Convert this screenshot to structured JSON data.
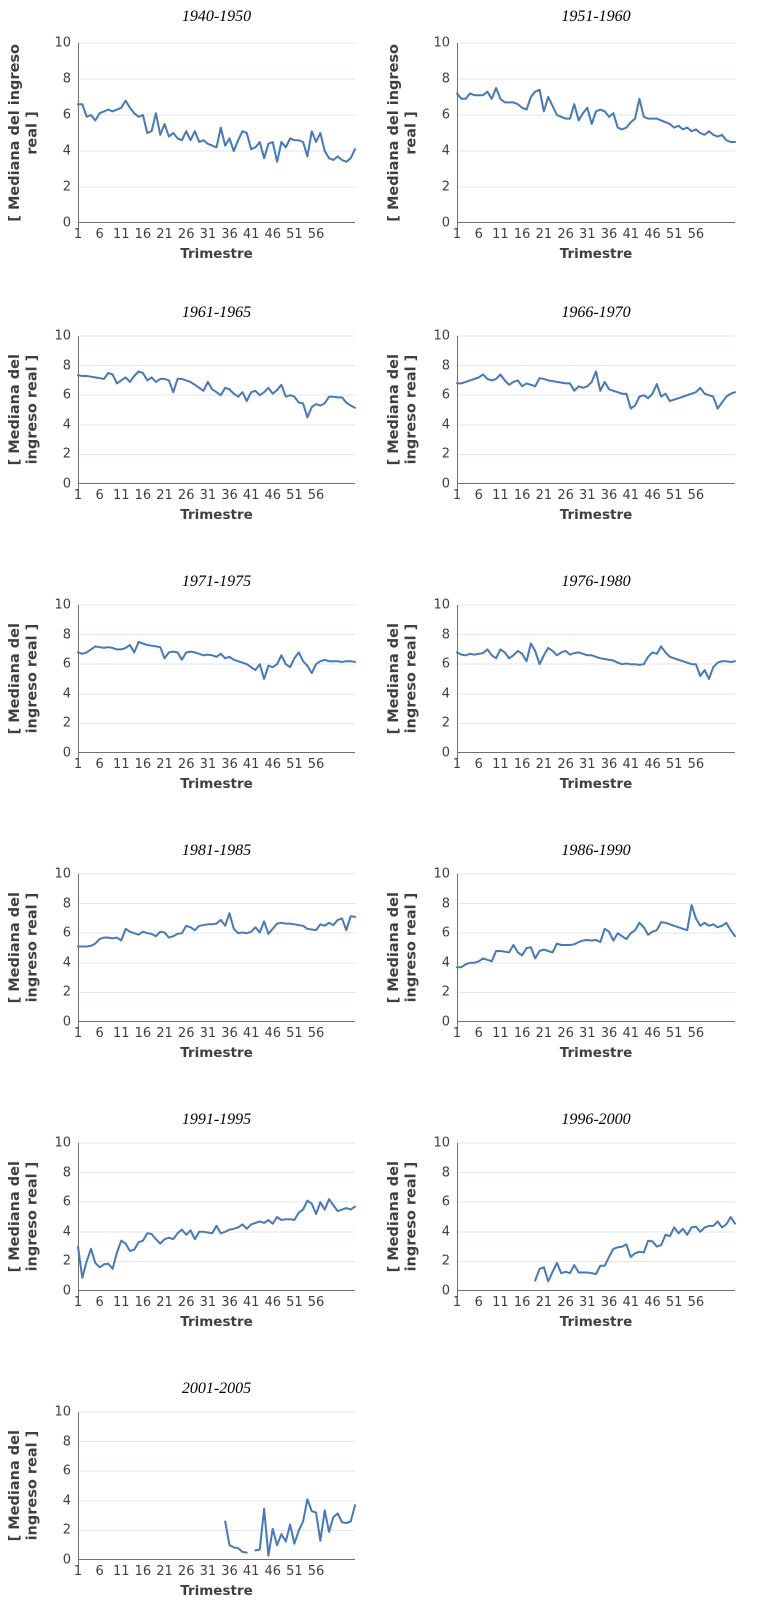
{
  "page": {
    "background": "#ffffff"
  },
  "style": {
    "line_color": "#4a7ab5",
    "grid_color": "#dde7f3",
    "axis_color": "#707070",
    "tick_text_color": "#3f3f3f",
    "title_color": "#000000"
  },
  "chart_data": [
    {
      "type": "line",
      "title": "1940-1950",
      "xlabel": "Trimestre",
      "ylabel": "[ Mediana del ingreso real ]",
      "ylabel_lines": [
        "[ Mediana del ingreso",
        "real ]"
      ],
      "x_ticks": [
        1,
        6,
        11,
        16,
        21,
        26,
        31,
        36,
        41,
        46,
        51,
        56
      ],
      "y_ticks": [
        0,
        2,
        4,
        6,
        8,
        10
      ],
      "xlim": [
        1,
        65
      ],
      "ylim": [
        0,
        10
      ],
      "grid": "horizontal",
      "legend": "none",
      "x_start": 1,
      "values": [
        6.6,
        6.6,
        5.9,
        6.0,
        5.7,
        6.1,
        6.2,
        6.3,
        6.2,
        6.3,
        6.4,
        6.8,
        6.4,
        6.1,
        5.9,
        6.0,
        5.0,
        5.1,
        6.1,
        4.9,
        5.5,
        4.8,
        5.0,
        4.7,
        4.6,
        5.1,
        4.6,
        5.1,
        4.5,
        4.6,
        4.4,
        4.3,
        4.2,
        5.3,
        4.3,
        4.7,
        4.0,
        4.6,
        5.1,
        5.0,
        4.1,
        4.2,
        4.5,
        3.6,
        4.4,
        4.5,
        3.4,
        4.5,
        4.2,
        4.7,
        4.6,
        4.6,
        4.5,
        3.7,
        5.1,
        4.5,
        5.0,
        4.0,
        3.6,
        3.5,
        3.7,
        3.5,
        3.4,
        3.6,
        4.1
      ]
    },
    {
      "type": "line",
      "title": "1951-1960",
      "xlabel": "Trimestre",
      "ylabel": "[ Mediana del ingreso real ]",
      "ylabel_lines": [
        "[ Mediana del ingreso",
        "real ]"
      ],
      "x_ticks": [
        1,
        6,
        11,
        16,
        21,
        26,
        31,
        36,
        41,
        46,
        51,
        56
      ],
      "y_ticks": [
        0,
        2,
        4,
        6,
        8,
        10
      ],
      "xlim": [
        1,
        65
      ],
      "ylim": [
        0,
        10
      ],
      "grid": "horizontal",
      "legend": "none",
      "x_start": 1,
      "values": [
        7.2,
        6.9,
        6.9,
        7.2,
        7.1,
        7.1,
        7.1,
        7.3,
        6.9,
        7.5,
        6.9,
        6.7,
        6.7,
        6.7,
        6.6,
        6.4,
        6.3,
        7.0,
        7.3,
        7.4,
        6.2,
        7.0,
        6.5,
        6.0,
        5.9,
        5.8,
        5.8,
        6.6,
        5.7,
        6.1,
        6.4,
        5.5,
        6.2,
        6.3,
        6.2,
        5.9,
        6.1,
        5.3,
        5.2,
        5.3,
        5.6,
        5.8,
        6.9,
        5.9,
        5.8,
        5.8,
        5.8,
        5.7,
        5.6,
        5.5,
        5.3,
        5.4,
        5.2,
        5.3,
        5.1,
        5.2,
        5.0,
        4.9,
        5.1,
        4.9,
        4.8,
        4.9,
        4.6,
        4.5,
        4.5
      ]
    },
    {
      "type": "line",
      "title": "1961-1965",
      "xlabel": "Trimestre",
      "ylabel": "[ Mediana del ingreso real ]",
      "ylabel_lines": [
        "[ Mediana del",
        "ingreso real ]"
      ],
      "x_ticks": [
        1,
        6,
        11,
        16,
        21,
        26,
        31,
        36,
        41,
        46,
        51,
        56
      ],
      "y_ticks": [
        0,
        2,
        4,
        6,
        8,
        10
      ],
      "xlim": [
        1,
        65
      ],
      "ylim": [
        0,
        10
      ],
      "grid": "horizontal",
      "legend": "none",
      "x_start": 1,
      "values": [
        7.35,
        7.3,
        7.3,
        7.25,
        7.2,
        7.15,
        7.1,
        7.5,
        7.4,
        6.8,
        7.0,
        7.2,
        6.9,
        7.3,
        7.6,
        7.5,
        7.0,
        7.2,
        6.9,
        7.1,
        7.1,
        7.0,
        6.2,
        7.1,
        7.1,
        7.0,
        6.9,
        6.7,
        6.5,
        6.3,
        6.9,
        6.4,
        6.2,
        6.0,
        6.5,
        6.4,
        6.1,
        5.9,
        6.2,
        5.6,
        6.2,
        6.3,
        6.0,
        6.2,
        6.5,
        6.1,
        6.35,
        6.7,
        5.9,
        6.0,
        5.9,
        5.5,
        5.45,
        4.5,
        5.2,
        5.4,
        5.3,
        5.45,
        5.9,
        5.9,
        5.85,
        5.85,
        5.5,
        5.3,
        5.15
      ]
    },
    {
      "type": "line",
      "title": "1966-1970",
      "xlabel": "Trimestre",
      "ylabel": "[ Mediana del ingreso real ]",
      "ylabel_lines": [
        "[ Mediana del",
        "ingreso real ]"
      ],
      "x_ticks": [
        1,
        6,
        11,
        16,
        21,
        26,
        31,
        36,
        41,
        46,
        51,
        56
      ],
      "y_ticks": [
        0,
        2,
        4,
        6,
        8,
        10
      ],
      "xlim": [
        1,
        65
      ],
      "ylim": [
        0,
        10
      ],
      "grid": "horizontal",
      "legend": "none",
      "x_start": 1,
      "values": [
        6.8,
        6.8,
        6.9,
        7.0,
        7.1,
        7.2,
        7.4,
        7.1,
        7.0,
        7.1,
        7.4,
        7.0,
        6.7,
        6.9,
        7.0,
        6.6,
        6.8,
        6.7,
        6.6,
        7.15,
        7.1,
        7.0,
        6.95,
        6.9,
        6.85,
        6.8,
        6.8,
        6.3,
        6.6,
        6.5,
        6.6,
        6.9,
        7.6,
        6.3,
        6.9,
        6.4,
        6.3,
        6.2,
        6.1,
        6.1,
        5.1,
        5.3,
        5.9,
        6.0,
        5.8,
        6.1,
        6.75,
        5.9,
        6.1,
        5.6,
        5.7,
        5.8,
        5.9,
        6.0,
        6.1,
        6.2,
        6.5,
        6.1,
        6.0,
        5.9,
        5.1,
        5.5,
        5.9,
        6.1,
        6.2
      ]
    },
    {
      "type": "line",
      "title": "1971-1975",
      "xlabel": "Trimestre",
      "ylabel": "[ Mediana del ingreso real ]",
      "ylabel_lines": [
        "[ Mediana del",
        "ingreso real ]"
      ],
      "x_ticks": [
        1,
        6,
        11,
        16,
        21,
        26,
        31,
        36,
        41,
        46,
        51,
        56
      ],
      "y_ticks": [
        0,
        2,
        4,
        6,
        8,
        10
      ],
      "xlim": [
        1,
        65
      ],
      "ylim": [
        0,
        10
      ],
      "grid": "horizontal",
      "legend": "none",
      "x_start": 1,
      "values": [
        6.8,
        6.7,
        6.8,
        7.0,
        7.2,
        7.15,
        7.1,
        7.15,
        7.1,
        7.0,
        7.0,
        7.1,
        7.3,
        6.8,
        7.5,
        7.4,
        7.3,
        7.25,
        7.2,
        7.15,
        6.4,
        6.8,
        6.85,
        6.8,
        6.3,
        6.8,
        6.85,
        6.8,
        6.7,
        6.6,
        6.65,
        6.6,
        6.5,
        6.7,
        6.4,
        6.5,
        6.3,
        6.2,
        6.1,
        6.0,
        5.8,
        5.6,
        6.0,
        5.0,
        5.9,
        5.8,
        6.0,
        6.6,
        6.0,
        5.8,
        6.4,
        6.8,
        6.2,
        5.9,
        5.4,
        6.0,
        6.2,
        6.3,
        6.2,
        6.2,
        6.2,
        6.15,
        6.2,
        6.2,
        6.15
      ]
    },
    {
      "type": "line",
      "title": "1976-1980",
      "xlabel": "Trimestre",
      "ylabel": "[ Mediana del ingreso real ]",
      "ylabel_lines": [
        "[ Mediana del",
        "ingreso real ]"
      ],
      "x_ticks": [
        1,
        6,
        11,
        16,
        21,
        26,
        31,
        36,
        41,
        46,
        51,
        56
      ],
      "y_ticks": [
        0,
        2,
        4,
        6,
        8,
        10
      ],
      "xlim": [
        1,
        65
      ],
      "ylim": [
        0,
        10
      ],
      "grid": "horizontal",
      "legend": "none",
      "x_start": 1,
      "values": [
        6.8,
        6.65,
        6.6,
        6.7,
        6.65,
        6.7,
        6.75,
        7.0,
        6.6,
        6.4,
        7.0,
        6.8,
        6.4,
        6.6,
        6.9,
        6.7,
        6.2,
        7.4,
        6.9,
        6.0,
        6.6,
        7.1,
        6.9,
        6.6,
        6.8,
        6.9,
        6.65,
        6.75,
        6.8,
        6.7,
        6.6,
        6.6,
        6.5,
        6.4,
        6.35,
        6.3,
        6.25,
        6.1,
        6.0,
        6.05,
        6.0,
        6.0,
        5.95,
        6.0,
        6.5,
        6.8,
        6.7,
        7.2,
        6.8,
        6.5,
        6.4,
        6.3,
        6.2,
        6.1,
        6.0,
        6.0,
        5.2,
        5.6,
        5.0,
        5.8,
        6.1,
        6.2,
        6.2,
        6.15,
        6.2
      ]
    },
    {
      "type": "line",
      "title": "1981-1985",
      "xlabel": "Trimestre",
      "ylabel": "[ Mediana del ingreso real ]",
      "ylabel_lines": [
        "[ Mediana del",
        "ingreso real ]"
      ],
      "x_ticks": [
        1,
        6,
        11,
        16,
        21,
        26,
        31,
        36,
        41,
        46,
        51,
        56
      ],
      "y_ticks": [
        0,
        2,
        4,
        6,
        8,
        10
      ],
      "xlim": [
        1,
        65
      ],
      "ylim": [
        0,
        10
      ],
      "grid": "horizontal",
      "legend": "none",
      "x_start": 1,
      "values": [
        5.1,
        5.1,
        5.1,
        5.15,
        5.3,
        5.6,
        5.7,
        5.7,
        5.65,
        5.7,
        5.5,
        6.3,
        6.1,
        6.0,
        5.9,
        6.1,
        6.0,
        5.95,
        5.8,
        6.1,
        6.05,
        5.7,
        5.8,
        5.95,
        6.0,
        6.5,
        6.4,
        6.2,
        6.5,
        6.55,
        6.6,
        6.6,
        6.65,
        6.9,
        6.5,
        7.35,
        6.3,
        6.0,
        6.05,
        6.0,
        6.1,
        6.4,
        6.05,
        6.8,
        5.95,
        6.3,
        6.65,
        6.7,
        6.65,
        6.65,
        6.6,
        6.55,
        6.5,
        6.3,
        6.25,
        6.2,
        6.6,
        6.5,
        6.7,
        6.55,
        6.9,
        7.0,
        6.2,
        7.15,
        7.1
      ]
    },
    {
      "type": "line",
      "title": "1986-1990",
      "xlabel": "Trimestre",
      "ylabel": "[ Mediana del ingreso real ]",
      "ylabel_lines": [
        "[ Mediana del",
        "ingreso real ]"
      ],
      "x_ticks": [
        1,
        6,
        11,
        16,
        21,
        26,
        31,
        36,
        41,
        46,
        51,
        56
      ],
      "y_ticks": [
        0,
        2,
        4,
        6,
        8,
        10
      ],
      "xlim": [
        1,
        65
      ],
      "ylim": [
        0,
        10
      ],
      "grid": "horizontal",
      "legend": "none",
      "x_start": 1,
      "values": [
        3.7,
        3.7,
        3.9,
        4.0,
        4.0,
        4.1,
        4.3,
        4.2,
        4.1,
        4.8,
        4.8,
        4.75,
        4.7,
        5.2,
        4.7,
        4.5,
        5.0,
        5.05,
        4.3,
        4.8,
        4.9,
        4.8,
        4.7,
        5.3,
        5.2,
        5.2,
        5.2,
        5.25,
        5.4,
        5.5,
        5.55,
        5.5,
        5.55,
        5.4,
        6.3,
        6.1,
        5.5,
        6.0,
        5.8,
        5.6,
        6.0,
        6.2,
        6.7,
        6.4,
        5.9,
        6.1,
        6.2,
        6.75,
        6.7,
        6.6,
        6.5,
        6.4,
        6.3,
        6.2,
        7.9,
        7.0,
        6.5,
        6.7,
        6.5,
        6.6,
        6.4,
        6.5,
        6.7,
        6.2,
        5.8
      ]
    },
    {
      "type": "line",
      "title": "1991-1995",
      "xlabel": "Trimestre",
      "ylabel": "[ Mediana del ingreso real ]",
      "ylabel_lines": [
        "[ Mediana del",
        "ingreso real ]"
      ],
      "x_ticks": [
        1,
        6,
        11,
        16,
        21,
        26,
        31,
        36,
        41,
        46,
        51,
        56
      ],
      "y_ticks": [
        0,
        2,
        4,
        6,
        8,
        10
      ],
      "xlim": [
        1,
        65
      ],
      "ylim": [
        0,
        10
      ],
      "grid": "horizontal",
      "legend": "none",
      "x_start": 1,
      "values": [
        3.0,
        0.9,
        2.0,
        2.85,
        1.9,
        1.6,
        1.8,
        1.85,
        1.5,
        2.6,
        3.4,
        3.2,
        2.7,
        2.8,
        3.3,
        3.4,
        3.9,
        3.85,
        3.5,
        3.2,
        3.5,
        3.6,
        3.5,
        3.9,
        4.15,
        3.8,
        4.1,
        3.5,
        4.0,
        4.0,
        3.95,
        3.9,
        4.4,
        3.9,
        4.0,
        4.15,
        4.2,
        4.3,
        4.5,
        4.2,
        4.5,
        4.6,
        4.7,
        4.6,
        4.8,
        4.55,
        5.0,
        4.8,
        4.85,
        4.85,
        4.8,
        5.3,
        5.5,
        6.1,
        5.9,
        5.2,
        6.0,
        5.5,
        6.2,
        5.8,
        5.4,
        5.5,
        5.6,
        5.5,
        5.7
      ]
    },
    {
      "type": "line",
      "title": "1996-2000",
      "xlabel": "Trimestre",
      "ylabel": "[ Mediana del ingreso real ]",
      "ylabel_lines": [
        "[ Mediana del",
        "ingreso real ]"
      ],
      "x_ticks": [
        1,
        6,
        11,
        16,
        21,
        26,
        31,
        36,
        41,
        46,
        51,
        56
      ],
      "y_ticks": [
        0,
        2,
        4,
        6,
        8,
        10
      ],
      "xlim": [
        1,
        65
      ],
      "ylim": [
        0,
        10
      ],
      "grid": "horizontal",
      "legend": "none",
      "x_start": 19,
      "values": [
        0.7,
        1.5,
        1.6,
        0.65,
        1.3,
        1.9,
        1.2,
        1.3,
        1.2,
        1.75,
        1.25,
        1.25,
        1.25,
        1.2,
        1.15,
        1.7,
        1.7,
        2.3,
        2.85,
        2.95,
        3.0,
        3.15,
        2.3,
        2.55,
        2.65,
        2.6,
        3.4,
        3.35,
        3.0,
        3.1,
        3.8,
        3.7,
        4.3,
        3.9,
        4.2,
        3.8,
        4.3,
        4.35,
        4.0,
        4.3,
        4.4,
        4.4,
        4.7,
        4.3,
        4.5,
        5.0,
        4.55
      ]
    },
    {
      "type": "line",
      "title": "2001-2005",
      "xlabel": "Trimestre",
      "ylabel": "[ Mediana del ingreso real ]",
      "ylabel_lines": [
        "[ Mediana del",
        "ingreso real ]"
      ],
      "x_ticks": [
        1,
        6,
        11,
        16,
        21,
        26,
        31,
        36,
        41,
        46,
        51,
        56
      ],
      "y_ticks": [
        0,
        2,
        4,
        6,
        8,
        10
      ],
      "xlim": [
        1,
        65
      ],
      "ylim": [
        0,
        10
      ],
      "grid": "horizontal",
      "legend": "none",
      "x_start": 35,
      "values": [
        2.6,
        1.0,
        0.85,
        0.8,
        0.55,
        0.5,
        null,
        0.65,
        0.7,
        3.45,
        0.3,
        2.1,
        1.0,
        1.75,
        1.25,
        2.4,
        1.1,
        2.0,
        2.6,
        4.1,
        3.3,
        3.2,
        1.3,
        3.35,
        1.9,
        2.9,
        3.15,
        2.55,
        2.5,
        2.6,
        3.7
      ]
    }
  ]
}
